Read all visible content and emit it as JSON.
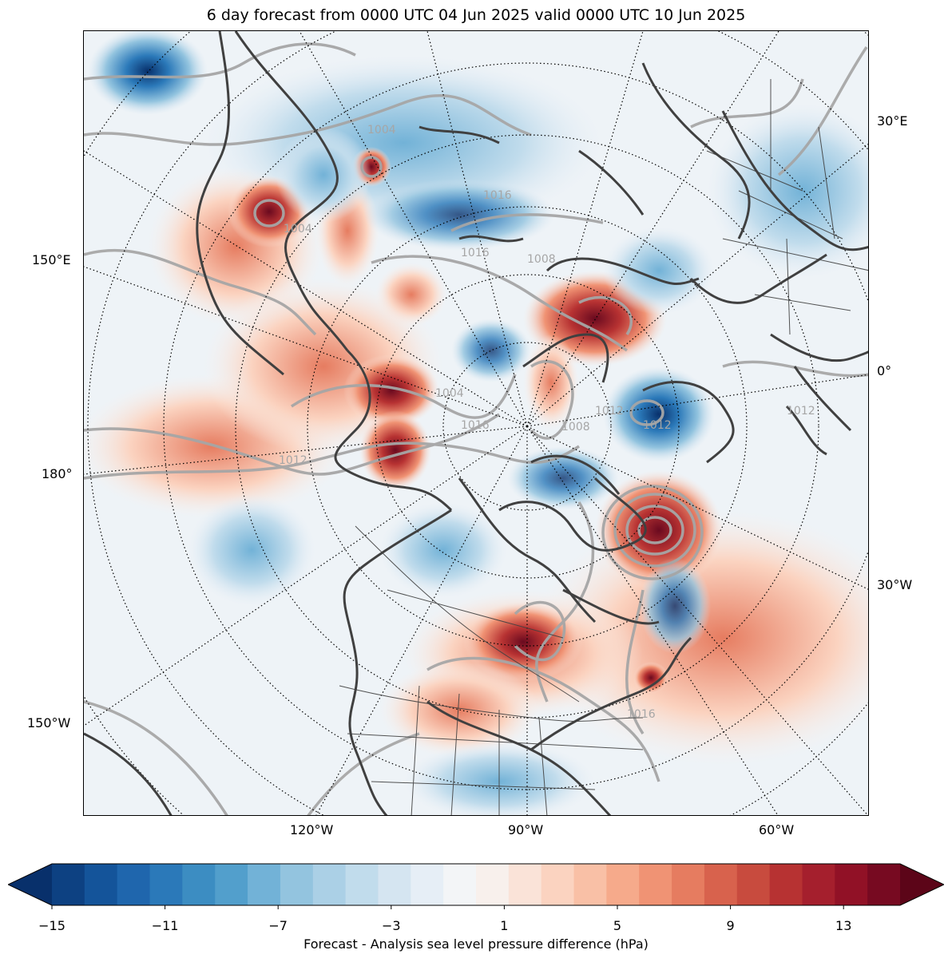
{
  "title": "6 day forecast from 0000 UTC 04 Jun 2025 valid 0000 UTC 10 Jun 2025",
  "lon_labels": {
    "right_30E": "30°E",
    "right_0": "0°",
    "right_30W": "30°W",
    "left_150E": "150°E",
    "left_180": "180°",
    "left_150W": "150°W",
    "bottom_120W": "120°W",
    "bottom_90W": "90°W",
    "bottom_60W": "60°W"
  },
  "isobar_labels": [
    "1016",
    "1004",
    "1016",
    "1008",
    "1004",
    "1016",
    "1012",
    "1012",
    "1012",
    "1016",
    "1004",
    "1008",
    "1012"
  ],
  "colorbar": {
    "label": "Forecast - Analysis sea level pressure difference (hPa)",
    "ticks": [
      "−15",
      "−11",
      "−7",
      "−3",
      "1",
      "5",
      "9",
      "13"
    ],
    "levels_min": -15,
    "levels_max": 15,
    "level_step": 1,
    "colors": [
      "#08306b",
      "#0d4182",
      "#14549a",
      "#1f66ad",
      "#2b79b9",
      "#3c8dc2",
      "#529fcc",
      "#72b2d7",
      "#93c4df",
      "#abd0e6",
      "#c1dcec",
      "#d5e5f1",
      "#e6eef6",
      "#f3f5f7",
      "#f8f0ec",
      "#fae3d8",
      "#fbd3c0",
      "#f9c0a6",
      "#f6aa8b",
      "#f09374",
      "#e67c60",
      "#d8624d",
      "#c84b3e",
      "#b73232",
      "#a51f2d",
      "#911126",
      "#770a21",
      "#5c0518"
    ]
  }
}
